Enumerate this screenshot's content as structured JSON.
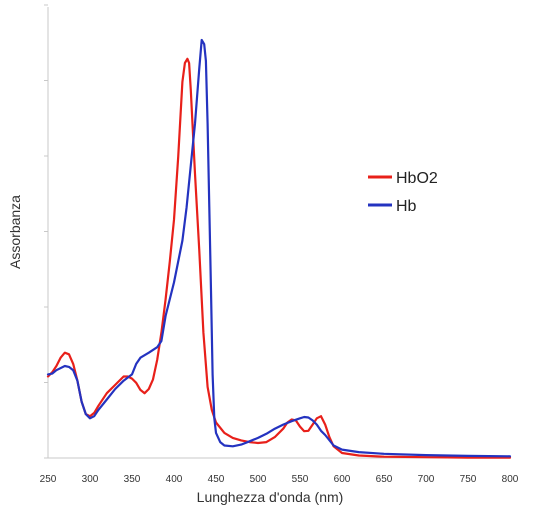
{
  "chart_data": {
    "type": "line",
    "title": "",
    "xlabel": "Lunghezza d'onda (nm)",
    "ylabel": "Assorbanza",
    "xlim": [
      250,
      800
    ],
    "ylim": [
      0,
      1
    ],
    "x_ticks": [
      "250",
      "300",
      "350",
      "400",
      "450",
      "500",
      "550",
      "600",
      "650",
      "700",
      "750",
      "800"
    ],
    "y_tick_labels_shown": false,
    "grid": false,
    "legend_position": "right",
    "series": [
      {
        "name": "HbO2",
        "color": "#e8201a",
        "points": [
          [
            250,
            0.195
          ],
          [
            255,
            0.205
          ],
          [
            260,
            0.22
          ],
          [
            265,
            0.24
          ],
          [
            270,
            0.252
          ],
          [
            275,
            0.248
          ],
          [
            280,
            0.225
          ],
          [
            285,
            0.185
          ],
          [
            290,
            0.135
          ],
          [
            295,
            0.105
          ],
          [
            300,
            0.1
          ],
          [
            305,
            0.108
          ],
          [
            310,
            0.125
          ],
          [
            320,
            0.155
          ],
          [
            330,
            0.175
          ],
          [
            340,
            0.195
          ],
          [
            345,
            0.195
          ],
          [
            350,
            0.19
          ],
          [
            355,
            0.18
          ],
          [
            360,
            0.163
          ],
          [
            365,
            0.155
          ],
          [
            370,
            0.165
          ],
          [
            375,
            0.188
          ],
          [
            380,
            0.235
          ],
          [
            385,
            0.3
          ],
          [
            390,
            0.38
          ],
          [
            395,
            0.47
          ],
          [
            400,
            0.57
          ],
          [
            405,
            0.72
          ],
          [
            410,
            0.9
          ],
          [
            413,
            0.945
          ],
          [
            416,
            0.955
          ],
          [
            418,
            0.945
          ],
          [
            420,
            0.88
          ],
          [
            425,
            0.68
          ],
          [
            430,
            0.5
          ],
          [
            435,
            0.3
          ],
          [
            440,
            0.17
          ],
          [
            445,
            0.115
          ],
          [
            450,
            0.085
          ],
          [
            460,
            0.06
          ],
          [
            470,
            0.048
          ],
          [
            480,
            0.042
          ],
          [
            490,
            0.038
          ],
          [
            500,
            0.036
          ],
          [
            510,
            0.038
          ],
          [
            520,
            0.05
          ],
          [
            530,
            0.07
          ],
          [
            535,
            0.085
          ],
          [
            540,
            0.092
          ],
          [
            545,
            0.09
          ],
          [
            550,
            0.075
          ],
          [
            555,
            0.064
          ],
          [
            560,
            0.065
          ],
          [
            565,
            0.08
          ],
          [
            570,
            0.095
          ],
          [
            575,
            0.1
          ],
          [
            580,
            0.08
          ],
          [
            585,
            0.05
          ],
          [
            590,
            0.028
          ],
          [
            600,
            0.012
          ],
          [
            620,
            0.006
          ],
          [
            650,
            0.003
          ],
          [
            700,
            0.002
          ],
          [
            750,
            0.001
          ],
          [
            800,
            0.001
          ]
        ]
      },
      {
        "name": "Hb",
        "color": "#2433c0",
        "points": [
          [
            250,
            0.2
          ],
          [
            255,
            0.202
          ],
          [
            260,
            0.21
          ],
          [
            270,
            0.22
          ],
          [
            275,
            0.218
          ],
          [
            280,
            0.21
          ],
          [
            285,
            0.185
          ],
          [
            290,
            0.135
          ],
          [
            295,
            0.105
          ],
          [
            300,
            0.095
          ],
          [
            305,
            0.1
          ],
          [
            310,
            0.115
          ],
          [
            320,
            0.14
          ],
          [
            330,
            0.165
          ],
          [
            340,
            0.185
          ],
          [
            350,
            0.2
          ],
          [
            355,
            0.225
          ],
          [
            360,
            0.24
          ],
          [
            370,
            0.252
          ],
          [
            380,
            0.265
          ],
          [
            385,
            0.28
          ],
          [
            390,
            0.34
          ],
          [
            400,
            0.42
          ],
          [
            410,
            0.52
          ],
          [
            415,
            0.6
          ],
          [
            420,
            0.7
          ],
          [
            425,
            0.8
          ],
          [
            430,
            0.93
          ],
          [
            433,
            1.0
          ],
          [
            436,
            0.99
          ],
          [
            438,
            0.95
          ],
          [
            440,
            0.8
          ],
          [
            442,
            0.6
          ],
          [
            444,
            0.4
          ],
          [
            446,
            0.2
          ],
          [
            448,
            0.095
          ],
          [
            450,
            0.06
          ],
          [
            455,
            0.038
          ],
          [
            460,
            0.03
          ],
          [
            470,
            0.028
          ],
          [
            480,
            0.032
          ],
          [
            490,
            0.04
          ],
          [
            500,
            0.048
          ],
          [
            510,
            0.058
          ],
          [
            520,
            0.07
          ],
          [
            530,
            0.08
          ],
          [
            540,
            0.088
          ],
          [
            550,
            0.095
          ],
          [
            555,
            0.098
          ],
          [
            560,
            0.097
          ],
          [
            565,
            0.09
          ],
          [
            570,
            0.08
          ],
          [
            575,
            0.065
          ],
          [
            580,
            0.055
          ],
          [
            590,
            0.03
          ],
          [
            600,
            0.02
          ],
          [
            620,
            0.014
          ],
          [
            650,
            0.01
          ],
          [
            700,
            0.007
          ],
          [
            750,
            0.005
          ],
          [
            800,
            0.004
          ]
        ]
      }
    ]
  }
}
